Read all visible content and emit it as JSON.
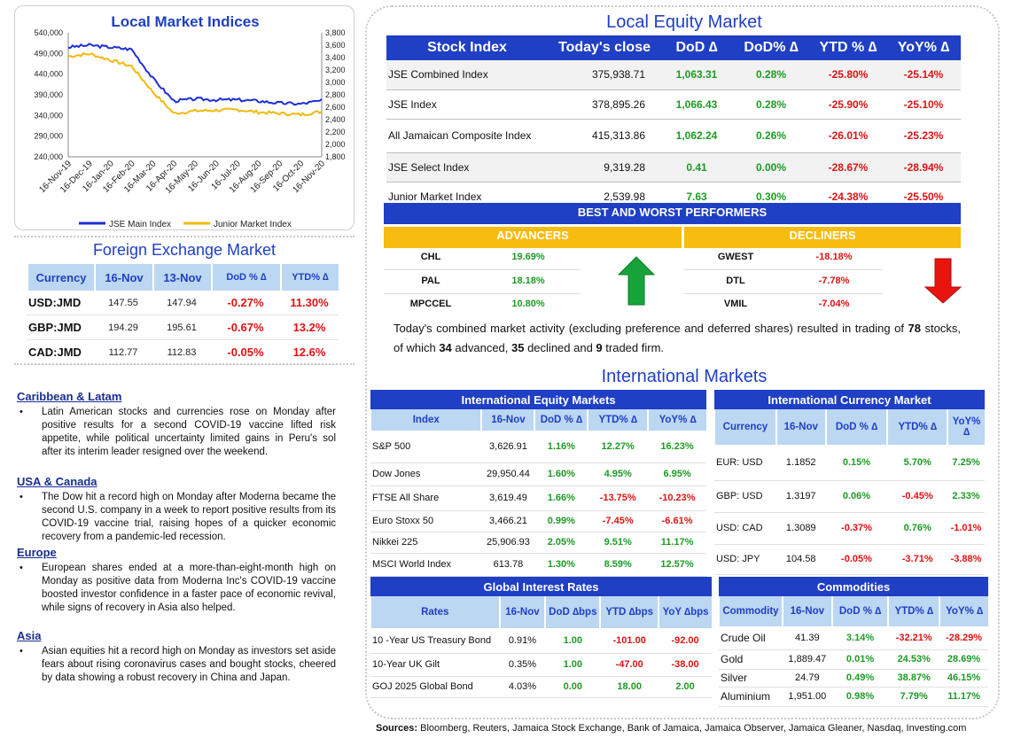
{
  "chart": {
    "title": "Local Market Indices",
    "left_ticks": [
      "540,000",
      "490,000",
      "440,000",
      "390,000",
      "340,000",
      "290,000",
      "240,000"
    ],
    "right_ticks": [
      "3,800",
      "3,600",
      "3,400",
      "3,200",
      "3,000",
      "2,800",
      "2,600",
      "2,400",
      "2,200",
      "2,000",
      "1,800"
    ],
    "x_ticks": [
      "16-Nov-19",
      "16-Dec-19",
      "16-Jan-20",
      "16-Feb-20",
      "16-Mar-20",
      "16-Apr-20",
      "16-May-20",
      "16-Jun-20",
      "16-Jul-20",
      "16-Aug-20",
      "16-Sep-20",
      "16-Oct-20",
      "16-Nov-20"
    ],
    "legend": [
      "JSE Main Index",
      "Junior Market Index"
    ],
    "colors": {
      "main": "#1f2fd6",
      "junior": "#f2b90c"
    }
  },
  "chart_data": {
    "type": "line",
    "title": "Local Market Indices",
    "xlabel": "",
    "ylabel": "",
    "x": [
      "16-Nov-19",
      "16-Dec-19",
      "16-Jan-20",
      "16-Feb-20",
      "16-Mar-20",
      "16-Apr-20",
      "16-May-20",
      "16-Jun-20",
      "16-Jul-20",
      "16-Aug-20",
      "16-Sep-20",
      "16-Oct-20",
      "16-Nov-20"
    ],
    "ylim": [
      240000,
      540000
    ],
    "y2lim": [
      1800,
      3800
    ],
    "series": [
      {
        "name": "JSE Main Index",
        "axis": "left",
        "values": [
          505000,
          510000,
          505000,
          500000,
          430000,
          375000,
          380000,
          378000,
          378000,
          375000,
          370000,
          368000,
          376000
        ]
      },
      {
        "name": "Junior Market Index",
        "axis": "right",
        "values": [
          3420,
          3460,
          3360,
          3260,
          2850,
          2500,
          2540,
          2550,
          2560,
          2520,
          2500,
          2480,
          2530
        ]
      }
    ],
    "legend_position": "bottom",
    "grid": false
  },
  "forex": {
    "title": "Foreign Exchange Market",
    "headers": [
      "Currency",
      "16-Nov",
      "13-Nov",
      "DoD % ∆",
      "YTD% ∆"
    ],
    "rows": [
      {
        "cur": "USD:JMD",
        "d1": "147.55",
        "d2": "147.94",
        "dod": "-0.27%",
        "ytd": "11.30%"
      },
      {
        "cur": "GBP:JMD",
        "d1": "194.29",
        "d2": "195.61",
        "dod": "-0.67%",
        "ytd": "13.2%"
      },
      {
        "cur": "CAD:JMD",
        "d1": "112.77",
        "d2": "112.83",
        "dod": "-0.05%",
        "ytd": "12.6%"
      }
    ]
  },
  "news": [
    {
      "head": "Caribbean & Latam",
      "text": "Latin American stocks and currencies rose on Monday after positive results for a second COVID-19 vaccine lifted risk appetite, while political uncertainty limited gains in Peru's sol after its interim leader resigned over the weekend."
    },
    {
      "head": "USA & Canada",
      "text": "The Dow hit a record high on Monday after Moderna became the second U.S. company in a week to report positive results from its COVID-19 vaccine trial, raising hopes of a quicker economic recovery from a pandemic-led recession."
    },
    {
      "head": "Europe",
      "text": "European shares ended at a more-than-eight-month high on Monday as positive data from Moderna Inc's COVID-19 vaccine boosted investor confidence in a faster pace of economic revival, while signs of recovery in Asia also helped."
    },
    {
      "head": "Asia",
      "text": "Asian equities hit a record high on Monday as investors set aside fears about rising coronavirus cases and bought stocks, cheered by data showing a robust recovery in China and Japan."
    }
  ],
  "bullet": "•",
  "equity": {
    "title": "Local Equity Market",
    "headers": [
      "Stock Index",
      "Today's close",
      "DoD  ∆",
      "DoD% ∆",
      "YTD % ∆",
      "YoY% ∆"
    ],
    "rows": [
      {
        "name": "JSE Combined Index",
        "close": "375,938.71",
        "dod": "1,063.31",
        "dodp": "0.28%",
        "ytd": "-25.80%",
        "yoy": "-25.14%"
      },
      {
        "name": "JSE Index",
        "close": "378,895.26",
        "dod": "1,066.43",
        "dodp": "0.28%",
        "ytd": "-25.90%",
        "yoy": "-25.10%"
      },
      {
        "name": "All Jamaican Composite Index",
        "close": "415,313.86",
        "dod": "1,062.24",
        "dodp": "0.26%",
        "ytd": "-26.01%",
        "yoy": "-25.23%"
      },
      {
        "name": "JSE Select Index",
        "close": "9,319.28",
        "dod": "0.41",
        "dodp": "0.00%",
        "ytd": "-28.67%",
        "yoy": "-28.94%"
      },
      {
        "name": "Junior Market Index",
        "close": "2,539.98",
        "dod": "7.63",
        "dodp": "0.30%",
        "ytd": "-24.38%",
        "yoy": "-25.50%"
      }
    ]
  },
  "performers": {
    "title": "BEST AND WORST PERFORMERS",
    "advancers_label": "ADVANCERS",
    "decliners_label": "DECLINERS",
    "advancers": [
      {
        "name": "CHL",
        "val": "19.69%"
      },
      {
        "name": "PAL",
        "val": "18.18%"
      },
      {
        "name": "MPCCEL",
        "val": "10.80%"
      }
    ],
    "decliners": [
      {
        "name": "GWEST",
        "val": "-18.18%"
      },
      {
        "name": "DTL",
        "val": "-7.78%"
      },
      {
        "name": "VMIL",
        "val": "-7.04%"
      }
    ]
  },
  "activity": {
    "pre": "Today's combined market activity (excluding preference and deferred shares) resulted in trading of ",
    "n_stocks": "78",
    "mid1": " stocks, of which ",
    "adv": "34",
    "mid2": " advanced, ",
    "dec": "35",
    "mid3": " declined and ",
    "flat": "9",
    "post": " traded firm."
  },
  "intl": {
    "title": "International Markets",
    "equity": {
      "caption": "International Equity Markets",
      "headers": [
        "Index",
        "16-Nov",
        "DoD % ∆",
        "YTD% ∆",
        "YoY% ∆"
      ],
      "rows": [
        {
          "name": "S&P 500",
          "v": "3,626.91",
          "dod": "1.16%",
          "ytd": "12.27%",
          "yoy": "16.23%"
        },
        {
          "name": "Dow Jones",
          "v": "29,950.44",
          "dod": "1.60%",
          "ytd": "4.95%",
          "yoy": "6.95%"
        },
        {
          "name": "FTSE All Share",
          "v": "3,619.49",
          "dod": "1.66%",
          "ytd": "-13.75%",
          "yoy": "-10.23%"
        },
        {
          "name": "Euro Stoxx 50",
          "v": "3,466.21",
          "dod": "0.99%",
          "ytd": "-7.45%",
          "yoy": "-6.61%"
        },
        {
          "name": "Nikkei 225",
          "v": "25,906.93",
          "dod": "2.05%",
          "ytd": "9.51%",
          "yoy": "11.17%"
        },
        {
          "name": "MSCI World Index",
          "v": "613.78",
          "dod": "1.30%",
          "ytd": "8.59%",
          "yoy": "12.57%"
        }
      ]
    },
    "currency": {
      "caption": "International Currency Market",
      "headers": [
        "Currency",
        "16-Nov",
        "DoD % ∆",
        "YTD% ∆",
        "YoY% ∆"
      ],
      "rows": [
        {
          "name": "EUR: USD",
          "v": "1.1852",
          "dod": "0.15%",
          "ytd": "5.70%",
          "yoy": "7.25%"
        },
        {
          "name": "GBP: USD",
          "v": "1.3197",
          "dod": "0.06%",
          "ytd": "-0.45%",
          "yoy": "2.33%"
        },
        {
          "name": "USD: CAD",
          "v": "1.3089",
          "dod": "-0.37%",
          "ytd": "0.76%",
          "yoy": "-1.01%"
        },
        {
          "name": "USD: JPY",
          "v": "104.58",
          "dod": "-0.05%",
          "ytd": "-3.71%",
          "yoy": "-3.88%"
        }
      ]
    },
    "rates": {
      "caption": "Global Interest Rates",
      "headers": [
        "Rates",
        "16-Nov",
        "DoD ∆bps",
        "YTD ∆bps",
        "YoY ∆bps"
      ],
      "rows": [
        {
          "name": "10 -Year US Treasury Bond",
          "v": "0.91%",
          "dod": "1.00",
          "ytd": "-101.00",
          "yoy": "-92.00"
        },
        {
          "name": "10-Year UK Gilt",
          "v": "0.35%",
          "dod": "1.00",
          "ytd": "-47.00",
          "yoy": "-38.00"
        },
        {
          "name": "GOJ 2025 Global Bond",
          "v": "4.03%",
          "dod": "0.00",
          "ytd": "18.00",
          "yoy": "2.00"
        }
      ]
    },
    "commodities": {
      "caption": "Commodities",
      "headers": [
        "Commodity",
        "16-Nov",
        "DoD % ∆",
        "YTD% ∆",
        "YoY% ∆"
      ],
      "rows": [
        {
          "name": "Crude Oil",
          "v": "41.39",
          "dod": "3.14%",
          "ytd": "-32.21%",
          "yoy": "-28.29%"
        },
        {
          "name": "Gold",
          "v": "1,889.47",
          "dod": "0.01%",
          "ytd": "24.53%",
          "yoy": "28.69%"
        },
        {
          "name": "Silver",
          "v": "24.79",
          "dod": "0.49%",
          "ytd": "38.87%",
          "yoy": "46.15%"
        },
        {
          "name": "Aluminium",
          "v": "1,951.00",
          "dod": "0.98%",
          "ytd": "7.79%",
          "yoy": "11.17%"
        }
      ]
    }
  },
  "sources": {
    "label": "Sources:",
    "text": " Bloomberg, Reuters, Jamaica Stock Exchange, Bank of Jamaica, Jamaica Observer, Jamaica Gleaner, Nasdaq, Investing.com"
  }
}
